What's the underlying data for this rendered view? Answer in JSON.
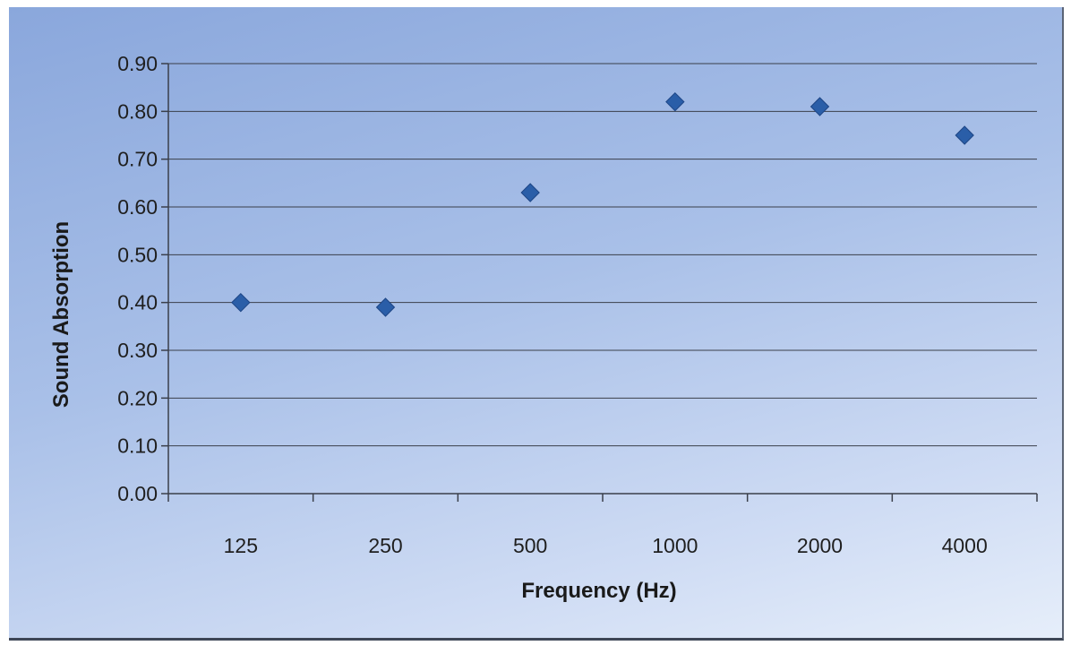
{
  "chart_data": {
    "type": "scatter",
    "title": "",
    "xlabel": "Frequency (Hz)",
    "ylabel": "Sound Absorption",
    "categories": [
      "125",
      "250",
      "500",
      "1000",
      "2000",
      "4000"
    ],
    "series": [
      {
        "values": [
          0.4,
          0.39,
          0.63,
          0.82,
          0.81,
          0.75
        ],
        "color": "#2a5ea8",
        "marker": "diamond"
      }
    ],
    "ylim": [
      0.0,
      0.9
    ],
    "y_ticks": [
      "0.00",
      "0.10",
      "0.20",
      "0.30",
      "0.40",
      "0.50",
      "0.60",
      "0.70",
      "0.80",
      "0.90"
    ],
    "grid": true,
    "legend": "none",
    "colors": {
      "background": "#b6c9ec",
      "gridline": "#3a3f4a",
      "marker": "#2a5ea8"
    }
  }
}
